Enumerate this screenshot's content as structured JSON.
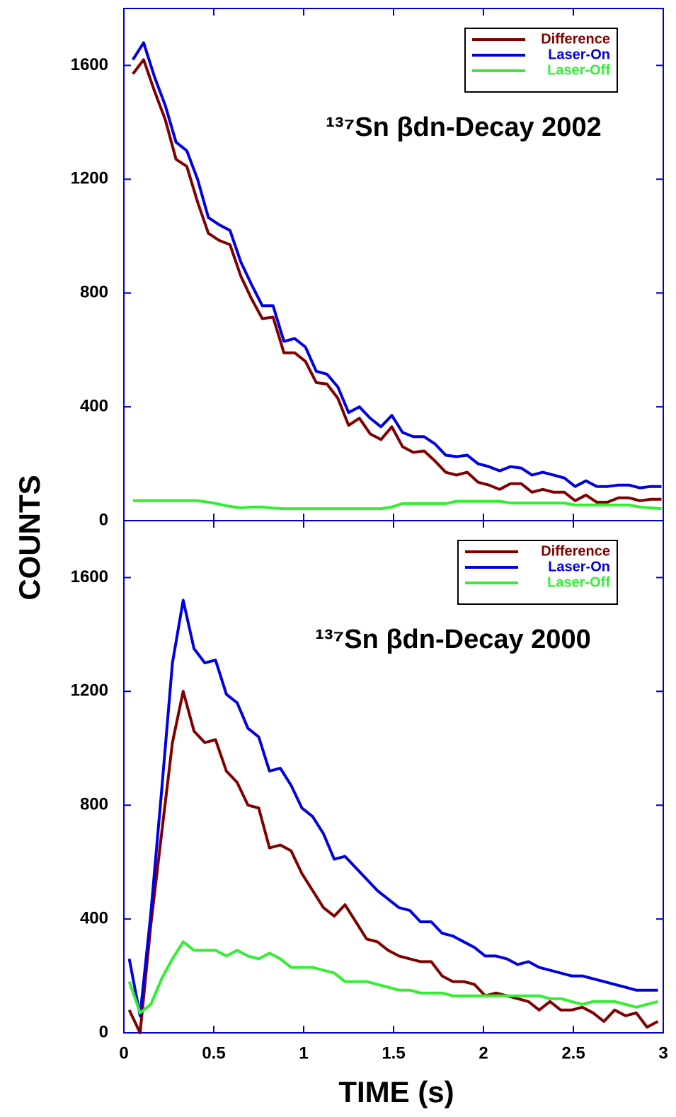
{
  "chart_data": [
    {
      "type": "line",
      "title": "¹³⁷Sn βdn-Decay 2002",
      "ylabel": "COUNTS",
      "legend": "upper right",
      "xlim": [
        0,
        3
      ],
      "xticks": [
        0,
        0.5,
        1,
        1.5,
        2,
        2.5,
        3
      ],
      "ylim": [
        0,
        1800
      ],
      "yticks": [
        0,
        400,
        800,
        1200,
        1600
      ],
      "x": [
        0.05,
        0.11,
        0.17,
        0.23,
        0.29,
        0.35,
        0.41,
        0.47,
        0.53,
        0.59,
        0.65,
        0.71,
        0.77,
        0.83,
        0.89,
        0.95,
        1.01,
        1.07,
        1.13,
        1.19,
        1.25,
        1.31,
        1.37,
        1.43,
        1.49,
        1.55,
        1.61,
        1.67,
        1.73,
        1.79,
        1.85,
        1.91,
        1.97,
        2.03,
        2.09,
        2.15,
        2.21,
        2.27,
        2.33,
        2.39,
        2.45,
        2.51,
        2.57,
        2.63,
        2.69,
        2.75,
        2.81,
        2.87,
        2.93,
        2.99
      ],
      "series": [
        {
          "name": "Difference",
          "color": "#800000",
          "values": [
            1570,
            1620,
            1510,
            1410,
            1270,
            1245,
            1120,
            1010,
            985,
            970,
            860,
            780,
            710,
            715,
            590,
            590,
            560,
            485,
            480,
            430,
            335,
            360,
            305,
            285,
            330,
            260,
            240,
            245,
            210,
            170,
            160,
            170,
            135,
            125,
            110,
            130,
            130,
            100,
            110,
            100,
            100,
            70,
            90,
            65,
            65,
            80,
            80,
            70,
            75,
            75
          ]
        },
        {
          "name": "Laser-On",
          "color": "#0000e0",
          "values": [
            1620,
            1680,
            1560,
            1460,
            1330,
            1300,
            1200,
            1065,
            1040,
            1020,
            910,
            830,
            755,
            755,
            630,
            640,
            610,
            525,
            515,
            470,
            380,
            400,
            360,
            330,
            370,
            310,
            295,
            295,
            270,
            230,
            225,
            230,
            200,
            190,
            175,
            190,
            185,
            160,
            170,
            160,
            150,
            120,
            140,
            120,
            120,
            125,
            125,
            115,
            120,
            120
          ]
        },
        {
          "name": "Laser-Off",
          "color": "#33ee33",
          "values": [
            70,
            70,
            70,
            70,
            70,
            70,
            70,
            65,
            58,
            50,
            45,
            48,
            48,
            44,
            42,
            42,
            42,
            42,
            42,
            42,
            42,
            42,
            42,
            42,
            48,
            60,
            60,
            60,
            60,
            60,
            68,
            68,
            68,
            68,
            68,
            62,
            62,
            62,
            62,
            62,
            62,
            55,
            55,
            55,
            55,
            55,
            55,
            48,
            45,
            42
          ]
        }
      ]
    },
    {
      "type": "line",
      "title": "¹³⁷Sn βdn-Decay 2000",
      "xlabel": "TIME (s)",
      "legend": "upper right",
      "xlim": [
        0,
        3
      ],
      "xticks": [
        0,
        0.5,
        1,
        1.5,
        2,
        2.5,
        3
      ],
      "ylim": [
        0,
        1800
      ],
      "yticks": [
        0,
        400,
        800,
        1200,
        1600
      ],
      "x": [
        0.03,
        0.09,
        0.15,
        0.21,
        0.27,
        0.33,
        0.39,
        0.45,
        0.51,
        0.57,
        0.63,
        0.69,
        0.75,
        0.81,
        0.87,
        0.93,
        0.99,
        1.05,
        1.11,
        1.17,
        1.23,
        1.29,
        1.35,
        1.41,
        1.47,
        1.53,
        1.59,
        1.65,
        1.71,
        1.77,
        1.83,
        1.89,
        1.95,
        2.01,
        2.07,
        2.13,
        2.19,
        2.25,
        2.31,
        2.37,
        2.43,
        2.49,
        2.55,
        2.61,
        2.67,
        2.73,
        2.79,
        2.85,
        2.91,
        2.97
      ],
      "series": [
        {
          "name": "Difference",
          "color": "#800000",
          "values": [
            80,
            0,
            380,
            700,
            1020,
            1200,
            1060,
            1020,
            1030,
            920,
            880,
            800,
            790,
            650,
            660,
            640,
            560,
            500,
            440,
            410,
            450,
            390,
            330,
            320,
            290,
            270,
            260,
            250,
            250,
            200,
            180,
            180,
            170,
            130,
            140,
            130,
            120,
            110,
            80,
            110,
            80,
            80,
            90,
            70,
            40,
            80,
            60,
            70,
            20,
            40
          ]
        },
        {
          "name": "Laser-On",
          "color": "#0000e0",
          "values": [
            260,
            60,
            420,
            850,
            1300,
            1520,
            1350,
            1300,
            1310,
            1190,
            1160,
            1070,
            1040,
            920,
            930,
            870,
            790,
            760,
            700,
            610,
            620,
            580,
            540,
            500,
            470,
            440,
            430,
            390,
            390,
            350,
            340,
            320,
            300,
            270,
            270,
            260,
            240,
            250,
            230,
            220,
            210,
            200,
            200,
            190,
            180,
            170,
            160,
            150,
            150,
            150
          ]
        },
        {
          "name": "Laser-Off",
          "color": "#33ee33",
          "values": [
            180,
            70,
            100,
            190,
            260,
            320,
            290,
            290,
            290,
            270,
            290,
            270,
            260,
            280,
            260,
            230,
            230,
            230,
            220,
            210,
            180,
            180,
            180,
            170,
            160,
            150,
            150,
            140,
            140,
            140,
            130,
            130,
            130,
            130,
            130,
            130,
            130,
            130,
            130,
            120,
            120,
            110,
            100,
            110,
            110,
            110,
            100,
            90,
            100,
            110
          ]
        }
      ]
    }
  ]
}
